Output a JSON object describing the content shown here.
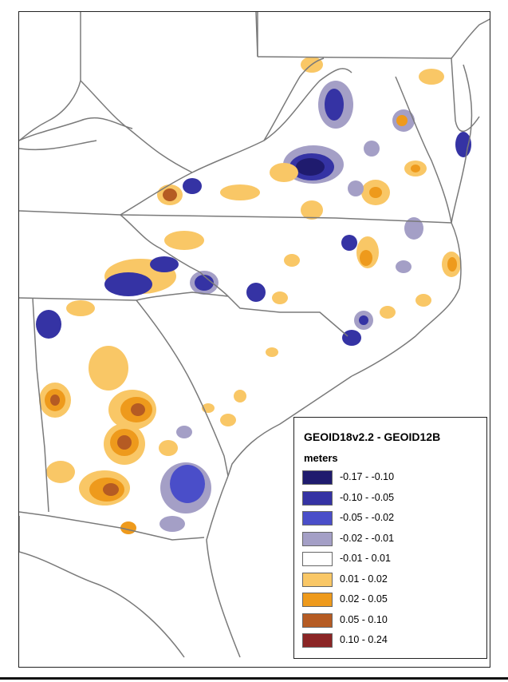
{
  "legend": {
    "title": "GEOID18v2.2 - GEOID12B",
    "units": "meters",
    "classes": [
      {
        "label": "-0.17 - -0.10",
        "color": "#1f1b6e"
      },
      {
        "label": "-0.10 - -0.05",
        "color": "#3533a4"
      },
      {
        "label": "-0.05 - -0.02",
        "color": "#4a4ec9"
      },
      {
        "label": "-0.02 - -0.01",
        "color": "#a49fc6"
      },
      {
        "label": "-0.01 - 0.01",
        "color": "#ffffff"
      },
      {
        "label": "0.01 - 0.02",
        "color": "#f9c766"
      },
      {
        "label": "0.02 - 0.05",
        "color": "#ee9a1c"
      },
      {
        "label": "0.05 - 0.10",
        "color": "#b55b23"
      },
      {
        "label": "0.10 - 0.24",
        "color": "#8b2525"
      }
    ]
  },
  "colors": {
    "boundary": "#7a7a7a",
    "frame": "#222222"
  }
}
